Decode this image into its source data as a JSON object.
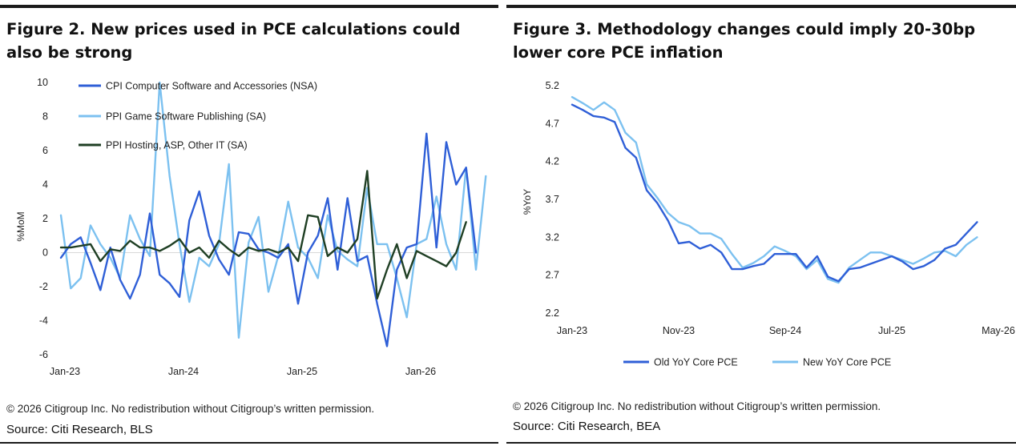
{
  "figures": {
    "left": {
      "title": "Figure 2. New prices used in PCE calculations could also be strong",
      "copyright": "© 2026 Citigroup Inc. No redistribution without Citigroup’s written permission.",
      "source": "Source: Citi Research, BLS"
    },
    "right": {
      "title": "Figure 3. Methodology changes could imply 20-30bp lower core PCE inflation",
      "copyright": "© 2026 Citigroup Inc. No redistribution without Citigroup’s written permission.",
      "source": "Source: Citi Research, BEA"
    }
  },
  "chart_data": [
    {
      "type": "line",
      "title": "Figure 2. New prices used in PCE calculations could also be strong",
      "xlabel": "",
      "ylabel": "%MoM",
      "ylim": [
        -6,
        10
      ],
      "yticks": [
        -6,
        -4,
        -2,
        0,
        2,
        4,
        6,
        8,
        10
      ],
      "xtick_labels": [
        "Jan-23",
        "Jan-24",
        "Jan-25",
        "Jan-26"
      ],
      "xtick_index": [
        0,
        12,
        24,
        36
      ],
      "legend_position": "top-left",
      "grid": false,
      "series": [
        {
          "name": "CPI Computer Software and Accessories (NSA)",
          "color": "#2f5fd7",
          "values": [
            -0.3,
            0.5,
            0.9,
            -0.6,
            -2.2,
            0.3,
            -1.6,
            -2.7,
            -1.3,
            2.3,
            -1.3,
            -1.8,
            -2.6,
            1.9,
            3.6,
            1.0,
            -0.4,
            -1.3,
            1.2,
            1.1,
            0.2,
            0.0,
            -0.3,
            0.5,
            -3.0,
            0.0,
            1.0,
            3.2,
            -1.0,
            3.2,
            -0.5,
            -0.2,
            -3.0,
            -5.5,
            -1.0,
            0.3,
            0.5,
            7.0,
            0.3,
            6.5,
            4.0,
            5.0,
            0.0
          ]
        },
        {
          "name": "PPI Game Software Publishing (SA)",
          "color": "#7cc1f0",
          "values": [
            2.2,
            -2.1,
            -1.5,
            1.6,
            0.5,
            -0.3,
            -1.5,
            2.2,
            0.8,
            -0.2,
            10.0,
            4.5,
            0.5,
            -2.9,
            -0.3,
            -0.8,
            0.5,
            5.2,
            -5.0,
            0.6,
            2.1,
            -2.3,
            -0.2,
            3.0,
            0.3,
            -0.3,
            -1.5,
            2.2,
            0.1,
            -0.4,
            -0.8,
            3.8,
            0.5,
            0.5,
            -1.5,
            -3.8,
            0.5,
            0.8,
            3.3,
            0.5,
            -1.0,
            5.0,
            -1.0,
            4.5
          ]
        },
        {
          "name": "PPI Hosting, ASP, Other IT (SA)",
          "color": "#1f3f24",
          "values": [
            0.3,
            0.3,
            0.4,
            0.5,
            -0.5,
            0.2,
            0.1,
            0.7,
            0.3,
            0.3,
            0.1,
            0.4,
            0.8,
            0.0,
            0.3,
            -0.3,
            0.7,
            0.2,
            -0.2,
            0.3,
            0.1,
            0.2,
            0.0,
            0.3,
            -0.5,
            2.2,
            2.1,
            -0.2,
            0.3,
            0.0,
            0.8,
            4.8,
            -2.7,
            -1.0,
            0.5,
            -1.5,
            0.1,
            -0.2,
            -0.5,
            -0.8,
            0.0,
            1.8
          ]
        }
      ]
    },
    {
      "type": "line",
      "title": "Figure 3. Methodology changes could imply 20-30bp lower core PCE inflation",
      "xlabel": "",
      "ylabel": "%YoY",
      "ylim": [
        2.2,
        5.2
      ],
      "yticks": [
        2.2,
        2.7,
        3.2,
        3.7,
        4.2,
        4.7,
        5.2
      ],
      "xtick_labels": [
        "Jan-23",
        "Nov-23",
        "Sep-24",
        "Jul-25",
        "May-26"
      ],
      "xtick_index": [
        0,
        10,
        20,
        30,
        40
      ],
      "legend_position": "bottom",
      "grid": false,
      "series": [
        {
          "name": "Old YoY Core PCE",
          "color": "#2f5fd7",
          "values": [
            4.95,
            4.88,
            4.8,
            4.78,
            4.72,
            4.38,
            4.25,
            3.82,
            3.65,
            3.42,
            3.12,
            3.14,
            3.05,
            3.1,
            3.0,
            2.78,
            2.78,
            2.82,
            2.85,
            2.98,
            2.98,
            2.98,
            2.8,
            2.95,
            2.68,
            2.62,
            2.78,
            2.8,
            2.85,
            2.9,
            2.95,
            2.88,
            2.78,
            2.82,
            2.9,
            3.05,
            3.1,
            3.25,
            3.4
          ]
        },
        {
          "name": "New YoY Core PCE",
          "color": "#7cc1f0",
          "values": [
            5.05,
            4.97,
            4.88,
            4.98,
            4.88,
            4.58,
            4.45,
            3.9,
            3.72,
            3.52,
            3.4,
            3.35,
            3.25,
            3.25,
            3.18,
            2.98,
            2.8,
            2.86,
            2.95,
            3.08,
            3.02,
            2.95,
            2.78,
            2.9,
            2.65,
            2.6,
            2.8,
            2.9,
            3.0,
            3.0,
            2.95,
            2.9,
            2.85,
            2.92,
            3.0,
            3.02,
            2.95,
            3.1,
            3.2
          ]
        }
      ]
    }
  ]
}
